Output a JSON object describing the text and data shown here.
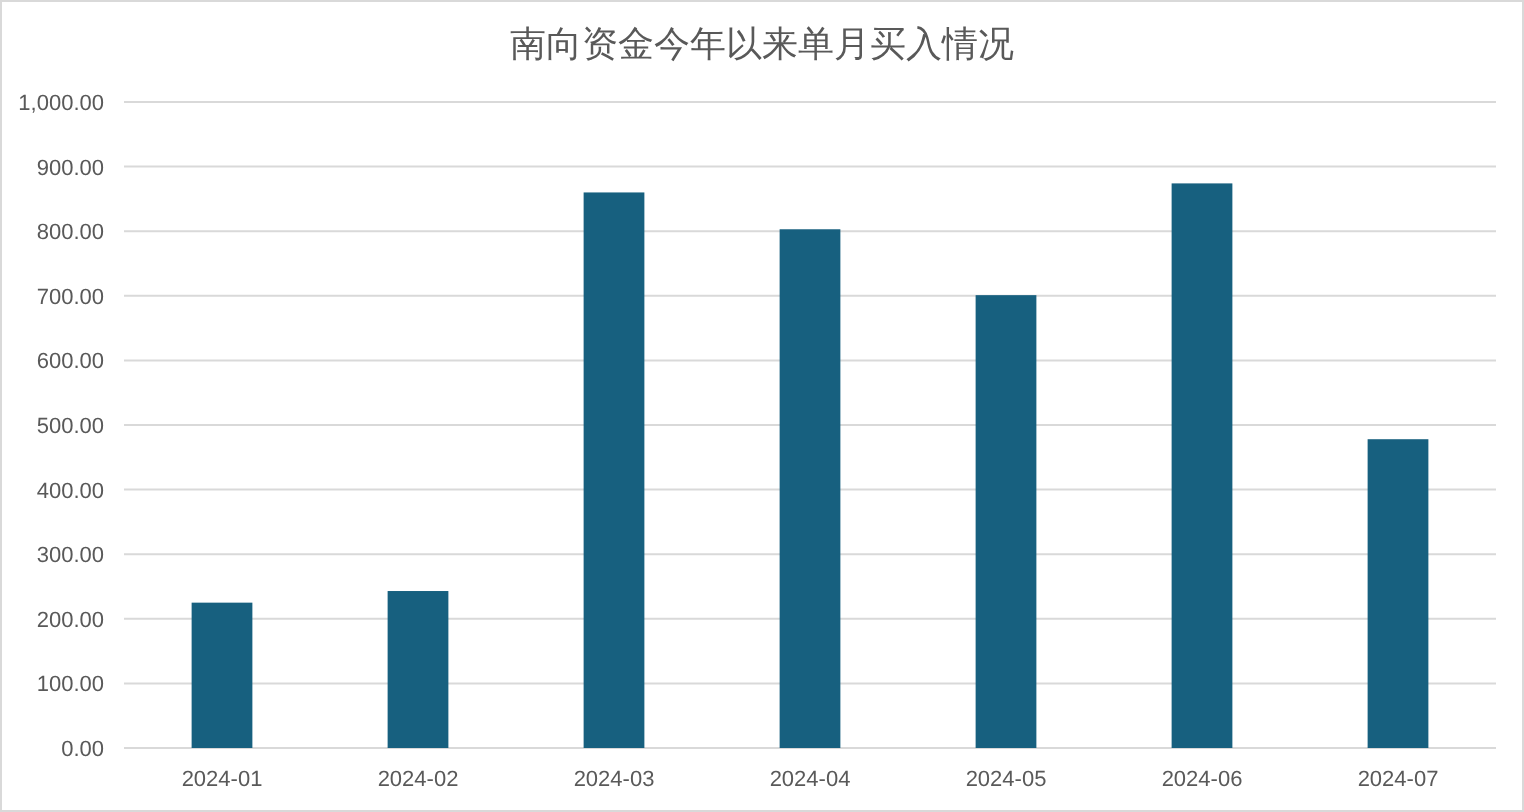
{
  "chart_data": {
    "type": "bar",
    "title": "南向资金今年以来单月买入情况",
    "categories": [
      "2024-01",
      "2024-02",
      "2024-03",
      "2024-04",
      "2024-05",
      "2024-06",
      "2024-07"
    ],
    "values": [
      225,
      243,
      860,
      803,
      701,
      874,
      478
    ],
    "color": "#17607f",
    "ylim": [
      0,
      1000
    ],
    "yticks": [
      {
        "value": 0,
        "label": "0.00"
      },
      {
        "value": 100,
        "label": "100.00"
      },
      {
        "value": 200,
        "label": "200.00"
      },
      {
        "value": 300,
        "label": "300.00"
      },
      {
        "value": 400,
        "label": "400.00"
      },
      {
        "value": 500,
        "label": "500.00"
      },
      {
        "value": 600,
        "label": "600.00"
      },
      {
        "value": 700,
        "label": "700.00"
      },
      {
        "value": 800,
        "label": "800.00"
      },
      {
        "value": 900,
        "label": "900.00"
      },
      {
        "value": 1000,
        "label": "1,000.00"
      }
    ],
    "grid": "y"
  }
}
